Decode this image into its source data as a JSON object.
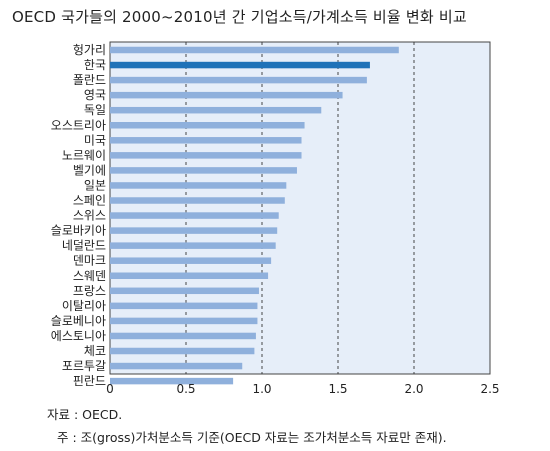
{
  "chart_data": {
    "type": "bar",
    "orientation": "horizontal",
    "title": "OECD 국가들의 2000~2010년 간 기업소득/가계소득 비율 변화 비교",
    "categories": [
      "헝가리",
      "한국",
      "폴란드",
      "영국",
      "독일",
      "오스트리아",
      "미국",
      "노르웨이",
      "벨기에",
      "일본",
      "스페인",
      "스위스",
      "슬로바키아",
      "네덜란드",
      "덴마크",
      "스웨덴",
      "프랑스",
      "이탈리아",
      "슬로베니아",
      "에스토니아",
      "체코",
      "포르투갈",
      "핀란드"
    ],
    "values": [
      1.9,
      1.71,
      1.69,
      1.53,
      1.39,
      1.28,
      1.26,
      1.26,
      1.23,
      1.16,
      1.15,
      1.11,
      1.1,
      1.09,
      1.06,
      1.04,
      0.98,
      0.97,
      0.97,
      0.96,
      0.95,
      0.87,
      0.81
    ],
    "highlight": "한국",
    "xlim": [
      0,
      2.5
    ],
    "xticks": [
      "0",
      "0.5",
      "1.0",
      "1.5",
      "2.0",
      "2.5"
    ],
    "grid": "vertical dashed",
    "colors": {
      "bar": "#8fb0dc",
      "highlight": "#1f72b8",
      "plot_bg": "#e6eef9",
      "grid": "#333333"
    }
  },
  "source": "자료 : OECD.",
  "note": "주 : 조(gross)가처분소득 기준(OECD 자료는 조가처분소득 자료만 존재)."
}
